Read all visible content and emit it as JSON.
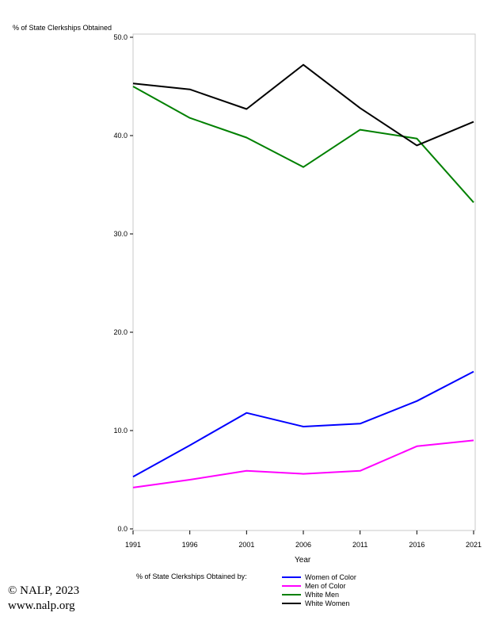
{
  "chart_data": {
    "type": "line",
    "x": [
      1991,
      1996,
      2001,
      2006,
      2011,
      2016,
      2021
    ],
    "xlabel": "Year",
    "ylabel": "% of State Clerkships Obtained",
    "ylim": [
      0,
      50
    ],
    "yticks": [
      "0.0",
      "10.0",
      "20.0",
      "30.0",
      "40.0",
      "50.0"
    ],
    "xticks": [
      "1991",
      "1996",
      "2001",
      "2006",
      "2011",
      "2016",
      "2021"
    ],
    "legend_title": "% of State Clerkships Obtained by:",
    "legend_position": "bottom",
    "grid": false,
    "series": [
      {
        "name": "Women of Color",
        "color": "#0000ff",
        "values": [
          5.3,
          8.5,
          11.8,
          10.4,
          10.7,
          13.0,
          16.0
        ]
      },
      {
        "name": "Men of Color",
        "color": "#ff00ff",
        "values": [
          4.2,
          5.0,
          5.9,
          5.6,
          5.9,
          8.4,
          9.0
        ]
      },
      {
        "name": "White Men",
        "color": "#008000",
        "values": [
          45.0,
          41.8,
          39.8,
          36.8,
          40.6,
          39.7,
          33.2
        ]
      },
      {
        "name": "White Women",
        "color": "#000000",
        "values": [
          45.3,
          44.7,
          42.7,
          47.2,
          42.8,
          39.0,
          41.4
        ]
      }
    ]
  },
  "footer": {
    "copyright": "© NALP, 2023",
    "website": "www.nalp.org"
  }
}
